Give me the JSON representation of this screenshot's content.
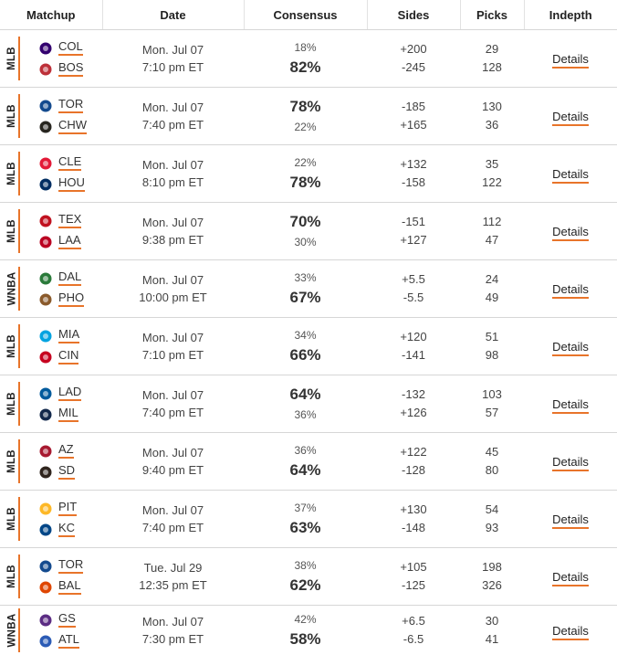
{
  "headers": {
    "matchup": "Matchup",
    "date": "Date",
    "consensus": "Consensus",
    "sides": "Sides",
    "picks": "Picks",
    "indepth": "Indepth"
  },
  "details_label": "Details",
  "rows": [
    {
      "league": "MLB",
      "teams": [
        {
          "abbr": "COL",
          "icon": "rockies-logo-icon",
          "color": "#33006f"
        },
        {
          "abbr": "BOS",
          "icon": "redsox-logo-icon",
          "color": "#bd3039"
        }
      ],
      "date": "Mon. Jul 07",
      "time": "7:10 pm ET",
      "consensus": [
        "18%",
        "82%"
      ],
      "big": 1,
      "sides": [
        "+200",
        "-245"
      ],
      "picks": [
        "29",
        "128"
      ]
    },
    {
      "league": "MLB",
      "teams": [
        {
          "abbr": "TOR",
          "icon": "bluejays-logo-icon",
          "color": "#134a8e"
        },
        {
          "abbr": "CHW",
          "icon": "whitesox-logo-icon",
          "color": "#27251f"
        }
      ],
      "date": "Mon. Jul 07",
      "time": "7:40 pm ET",
      "consensus": [
        "78%",
        "22%"
      ],
      "big": 0,
      "sides": [
        "-185",
        "+165"
      ],
      "picks": [
        "130",
        "36"
      ]
    },
    {
      "league": "MLB",
      "teams": [
        {
          "abbr": "CLE",
          "icon": "guardians-logo-icon",
          "color": "#e31937"
        },
        {
          "abbr": "HOU",
          "icon": "astros-logo-icon",
          "color": "#002d62"
        }
      ],
      "date": "Mon. Jul 07",
      "time": "8:10 pm ET",
      "consensus": [
        "22%",
        "78%"
      ],
      "big": 1,
      "sides": [
        "+132",
        "-158"
      ],
      "picks": [
        "35",
        "122"
      ]
    },
    {
      "league": "MLB",
      "teams": [
        {
          "abbr": "TEX",
          "icon": "rangers-logo-icon",
          "color": "#c0111f"
        },
        {
          "abbr": "LAA",
          "icon": "angels-logo-icon",
          "color": "#ba0021"
        }
      ],
      "date": "Mon. Jul 07",
      "time": "9:38 pm ET",
      "consensus": [
        "70%",
        "30%"
      ],
      "big": 0,
      "sides": [
        "-151",
        "+127"
      ],
      "picks": [
        "112",
        "47"
      ]
    },
    {
      "league": "WNBA",
      "teams": [
        {
          "abbr": "DAL",
          "icon": "wings-logo-icon",
          "color": "#2a7a3a"
        },
        {
          "abbr": "PHO",
          "icon": "mercury-logo-icon",
          "color": "#8a5a2b"
        }
      ],
      "date": "Mon. Jul 07",
      "time": "10:00 pm ET",
      "consensus": [
        "33%",
        "67%"
      ],
      "big": 1,
      "sides": [
        "+5.5",
        "-5.5"
      ],
      "picks": [
        "24",
        "49"
      ]
    },
    {
      "league": "MLB",
      "teams": [
        {
          "abbr": "MIA",
          "icon": "marlins-logo-icon",
          "color": "#00a3e0"
        },
        {
          "abbr": "CIN",
          "icon": "reds-logo-icon",
          "color": "#c6011f"
        }
      ],
      "date": "Mon. Jul 07",
      "time": "7:10 pm ET",
      "consensus": [
        "34%",
        "66%"
      ],
      "big": 1,
      "sides": [
        "+120",
        "-141"
      ],
      "picks": [
        "51",
        "98"
      ]
    },
    {
      "league": "MLB",
      "teams": [
        {
          "abbr": "LAD",
          "icon": "dodgers-logo-icon",
          "color": "#005a9c"
        },
        {
          "abbr": "MIL",
          "icon": "brewers-logo-icon",
          "color": "#12284b"
        }
      ],
      "date": "Mon. Jul 07",
      "time": "7:40 pm ET",
      "consensus": [
        "64%",
        "36%"
      ],
      "big": 0,
      "sides": [
        "-132",
        "+126"
      ],
      "picks": [
        "103",
        "57"
      ]
    },
    {
      "league": "MLB",
      "teams": [
        {
          "abbr": "AZ",
          "icon": "diamondbacks-logo-icon",
          "color": "#a71930"
        },
        {
          "abbr": "SD",
          "icon": "padres-logo-icon",
          "color": "#2f241d"
        }
      ],
      "date": "Mon. Jul 07",
      "time": "9:40 pm ET",
      "consensus": [
        "36%",
        "64%"
      ],
      "big": 1,
      "sides": [
        "+122",
        "-128"
      ],
      "picks": [
        "45",
        "80"
      ]
    },
    {
      "league": "MLB",
      "teams": [
        {
          "abbr": "PIT",
          "icon": "pirates-logo-icon",
          "color": "#fdb827"
        },
        {
          "abbr": "KC",
          "icon": "royals-logo-icon",
          "color": "#004687"
        }
      ],
      "date": "Mon. Jul 07",
      "time": "7:40 pm ET",
      "consensus": [
        "37%",
        "63%"
      ],
      "big": 1,
      "sides": [
        "+130",
        "-148"
      ],
      "picks": [
        "54",
        "93"
      ]
    },
    {
      "league": "MLB",
      "teams": [
        {
          "abbr": "TOR",
          "icon": "bluejays-logo-icon",
          "color": "#134a8e"
        },
        {
          "abbr": "BAL",
          "icon": "orioles-logo-icon",
          "color": "#df4601"
        }
      ],
      "date": "Tue. Jul 29",
      "time": "12:35 pm ET",
      "consensus": [
        "38%",
        "62%"
      ],
      "big": 1,
      "sides": [
        "+105",
        "-125"
      ],
      "picks": [
        "198",
        "326"
      ]
    },
    {
      "league": "WNBA",
      "teams": [
        {
          "abbr": "GS",
          "icon": "valkyries-logo-icon",
          "color": "#5b2c83"
        },
        {
          "abbr": "ATL",
          "icon": "dream-logo-icon",
          "color": "#2b5bb5"
        }
      ],
      "date": "Mon. Jul 07",
      "time": "7:30 pm ET",
      "consensus": [
        "42%",
        "58%"
      ],
      "big": 1,
      "sides": [
        "+6.5",
        "-6.5"
      ],
      "picks": [
        "30",
        "41"
      ]
    }
  ]
}
